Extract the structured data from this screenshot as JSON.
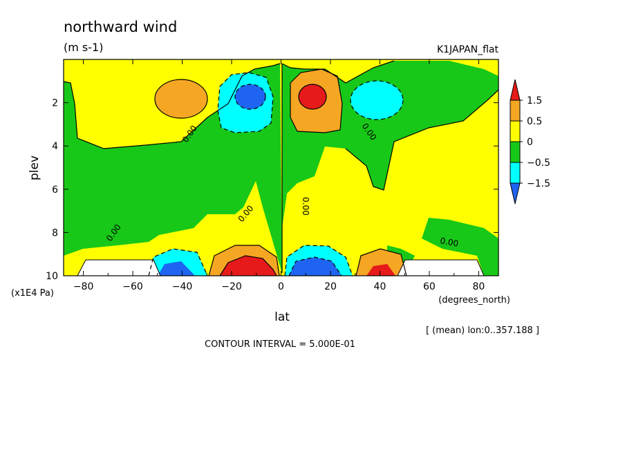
{
  "chart_data": {
    "type": "heatmap",
    "title": "northward wind",
    "units": "(m s-1)",
    "dataset": "K1JAPAN_flat",
    "xlabel": "lat",
    "xunits": "(degrees_north)",
    "ylabel": "plev",
    "yunits": "(x1E4 Pa)",
    "xlim": [
      -88,
      88
    ],
    "ylim": [
      10,
      0
    ],
    "xticks": [
      "−80",
      "−60",
      "−40",
      "−20",
      "0",
      "20",
      "40",
      "60",
      "80"
    ],
    "yticks": [
      "2",
      "4",
      "6",
      "8",
      "10"
    ],
    "colorbar": {
      "labels": [
        "1.5",
        "0.5",
        "0",
        "−0.5",
        "−1.5"
      ],
      "colors": [
        "#e61a1a",
        "#f5a623",
        "#ffff00",
        "#18c818",
        "#00ffff",
        "#1e64f0"
      ]
    },
    "contour_labels": [
      "0.00",
      "0.00",
      "0.00",
      "0.00",
      "0.00",
      "0.00"
    ],
    "average_note": "[ (mean) lon:0..357.188 ]",
    "contour_interval": "CONTOUR INTERVAL = 5.000E-01"
  }
}
